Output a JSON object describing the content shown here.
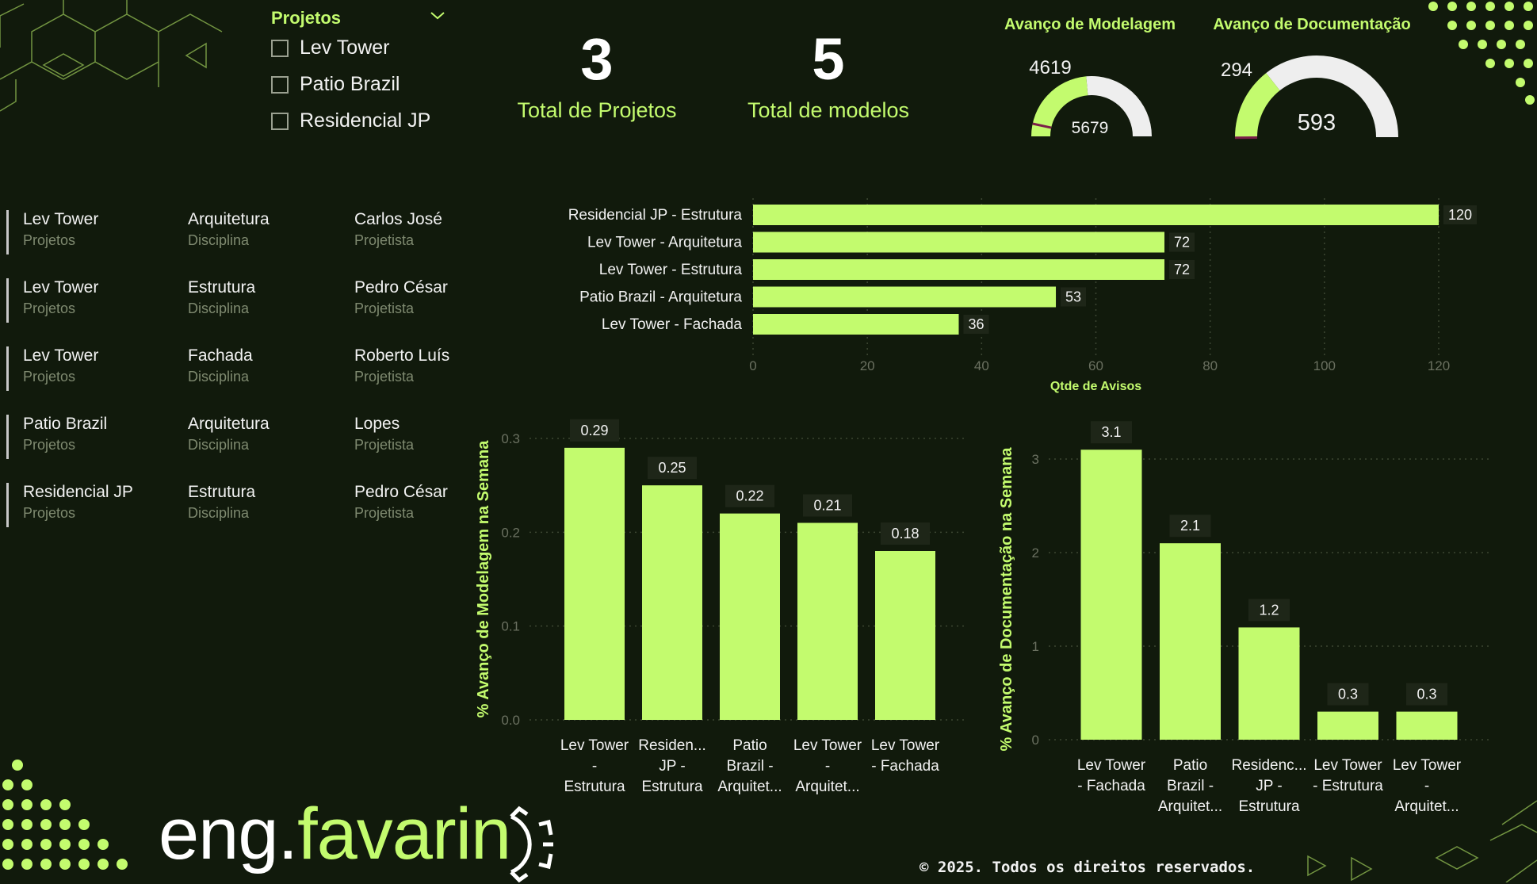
{
  "slicer": {
    "title": "Projetos",
    "items": [
      {
        "label": "Lev Tower"
      },
      {
        "label": "Patio Brazil"
      },
      {
        "label": "Residencial JP"
      }
    ]
  },
  "kpis": {
    "projects": {
      "value": "3",
      "label": "Total de Projetos"
    },
    "models": {
      "value": "5",
      "label": "Total de modelos"
    }
  },
  "gauges": {
    "modelagem": {
      "title": "Avanço de Modelagem",
      "value": 4619,
      "max": 5679,
      "value_label": "4619",
      "max_label": "5679"
    },
    "documentacao": {
      "title": "Avanço de Documentação",
      "value": 294,
      "max": 593,
      "value_label": "294",
      "max_label": "593"
    }
  },
  "cards": [
    {
      "project": "Lev Tower",
      "project_sub": "Projetos",
      "discipline": "Arquitetura",
      "discipline_sub": "Disciplina",
      "designer": "Carlos José",
      "designer_sub": "Projetista"
    },
    {
      "project": "Lev Tower",
      "project_sub": "Projetos",
      "discipline": "Estrutura",
      "discipline_sub": "Disciplina",
      "designer": "Pedro César",
      "designer_sub": "Projetista"
    },
    {
      "project": "Lev Tower",
      "project_sub": "Projetos",
      "discipline": "Fachada",
      "discipline_sub": "Disciplina",
      "designer": "Roberto Luís",
      "designer_sub": "Projetista"
    },
    {
      "project": "Patio Brazil",
      "project_sub": "Projetos",
      "discipline": "Arquitetura",
      "discipline_sub": "Disciplina",
      "designer": "Lopes",
      "designer_sub": "Projetista"
    },
    {
      "project": "Residencial JP",
      "project_sub": "Projetos",
      "discipline": "Estrutura",
      "discipline_sub": "Disciplina",
      "designer": "Pedro César",
      "designer_sub": "Projetista"
    }
  ],
  "colors": {
    "accent": "#c3fb6e",
    "background": "#111a0c",
    "gauge_track": "#eeeeee"
  },
  "chart_data": [
    {
      "type": "bar",
      "orientation": "horizontal",
      "categories": [
        "Residencial JP - Estrutura",
        "Lev Tower - Arquitetura",
        "Lev Tower - Estrutura",
        "Patio Brazil - Arquitetura",
        "Lev Tower - Fachada"
      ],
      "values": [
        120,
        72,
        72,
        53,
        36
      ],
      "xlabel": "Qtde de Avisos",
      "xlim": [
        0,
        120
      ],
      "xticks": [
        "0",
        "20",
        "40",
        "60",
        "80",
        "100",
        "120"
      ],
      "grid": true
    },
    {
      "type": "bar",
      "categories": [
        [
          "Lev Tower",
          "-",
          "Estrutura"
        ],
        [
          "Residen...",
          "JP -",
          "Estrutura"
        ],
        [
          "Patio",
          "Brazil -",
          "Arquitet..."
        ],
        [
          "Lev Tower",
          "-",
          "Arquitet..."
        ],
        [
          "Lev Tower",
          "- Fachada"
        ]
      ],
      "values": [
        0.29,
        0.25,
        0.22,
        0.21,
        0.18
      ],
      "value_labels": [
        "0.29",
        "0.25",
        "0.22",
        "0.21",
        "0.18"
      ],
      "ylabel": "% Avanço de Modelagem na Semana",
      "ylim": [
        0,
        0.3
      ],
      "yticks": [
        "0.0",
        "0.1",
        "0.2",
        "0.3"
      ],
      "grid": true
    },
    {
      "type": "bar",
      "categories": [
        [
          "Lev Tower",
          "- Fachada"
        ],
        [
          "Patio",
          "Brazil -",
          "Arquitet..."
        ],
        [
          "Residenc...",
          "JP -",
          "Estrutura"
        ],
        [
          "Lev Tower",
          "- Estrutura"
        ],
        [
          "Lev Tower",
          "-",
          "Arquitet..."
        ]
      ],
      "values": [
        3.1,
        2.1,
        1.2,
        0.3,
        0.3
      ],
      "value_labels": [
        "3.1",
        "2.1",
        "1.2",
        "0.3",
        "0.3"
      ],
      "ylabel": "% Avanço de Documentação na Semana",
      "ylim": [
        0,
        3
      ],
      "yticks": [
        "0",
        "1",
        "2",
        "3"
      ],
      "grid": true
    }
  ],
  "logo": {
    "part1": "eng.",
    "part2": "favarin"
  },
  "footer": {
    "copyright": "© 2025. Todos os direitos reservados."
  }
}
